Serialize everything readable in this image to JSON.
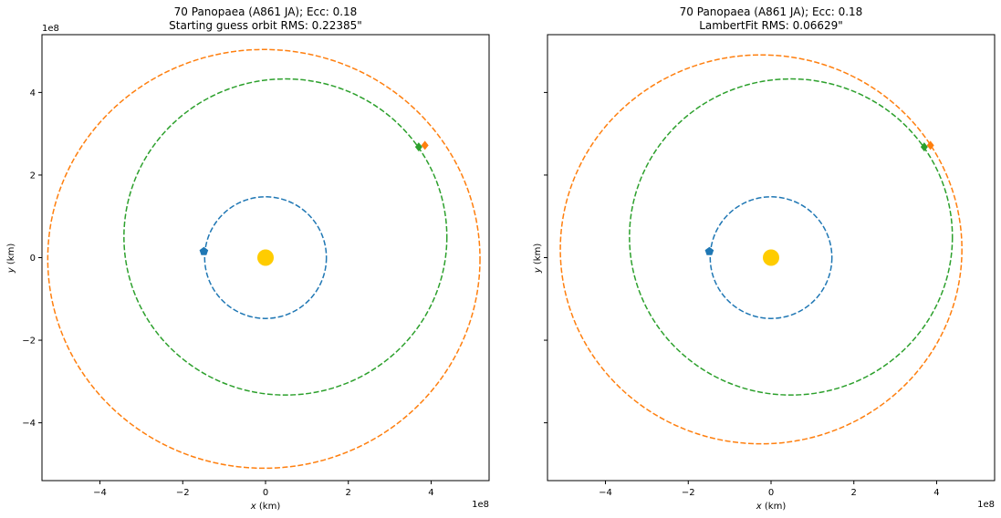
{
  "chart_data": [
    {
      "type": "scatter",
      "title_line1": "70 Panopaea (A861 JA); Ecc: 0.18",
      "title_line2": "Starting guess orbit RMS: 0.22385\"",
      "xlabel_var": "x",
      "xlabel_unit": " (km)",
      "ylabel_var": "y",
      "ylabel_unit": " (km)",
      "x_offset_label": "1e8",
      "y_offset_label": "1e8",
      "xlim": [
        -5.4,
        5.4
      ],
      "ylim": [
        -5.4,
        5.4
      ],
      "xticks": [
        -4,
        -2,
        0,
        2,
        4
      ],
      "yticks": [
        -4,
        -2,
        0,
        2,
        4
      ],
      "xtick_labels": [
        "−4",
        "−2",
        "0",
        "2",
        "4"
      ],
      "ytick_labels": [
        "−4",
        "−2",
        "0",
        "2",
        "4"
      ],
      "show_yticklabels": true,
      "sun": {
        "x": 0,
        "y": 0,
        "color": "#ffcc00"
      },
      "orbits": [
        {
          "color": "#1f77b4",
          "cx": 0.0,
          "cy": 0.0,
          "rx": 1.47,
          "ry": 1.47,
          "marker_x": -1.49,
          "marker_y": 0.15,
          "marker": "pentagon"
        },
        {
          "color": "#2ca02c",
          "cx": 0.48,
          "cy": 0.5,
          "rx": 3.9,
          "ry": 3.82,
          "marker_x": 3.7,
          "marker_y": 2.68,
          "marker": "diamond"
        },
        {
          "color": "#ff7f0e",
          "cx": -0.04,
          "cy": -0.03,
          "rx": 5.22,
          "ry": 5.06,
          "marker_x": 3.85,
          "marker_y": 2.72,
          "marker": "diamond"
        }
      ]
    },
    {
      "type": "scatter",
      "title_line1": "70 Panopaea (A861 JA); Ecc: 0.18",
      "title_line2": "LambertFit RMS: 0.06629\"",
      "xlabel_var": "x",
      "xlabel_unit": " (km)",
      "ylabel_var": "y",
      "ylabel_unit": " (km)",
      "x_offset_label": "1e8",
      "y_offset_label": "",
      "xlim": [
        -5.4,
        5.4
      ],
      "ylim": [
        -5.4,
        5.4
      ],
      "xticks": [
        -4,
        -2,
        0,
        2,
        4
      ],
      "yticks": [
        -4,
        -2,
        0,
        2,
        4
      ],
      "xtick_labels": [
        "−4",
        "−2",
        "0",
        "2",
        "4"
      ],
      "ytick_labels": [
        "",
        "",
        "",
        "",
        ""
      ],
      "show_yticklabels": false,
      "sun": {
        "x": 0,
        "y": 0,
        "color": "#ffcc00"
      },
      "orbits": [
        {
          "color": "#1f77b4",
          "cx": 0.0,
          "cy": 0.0,
          "rx": 1.47,
          "ry": 1.47,
          "marker_x": -1.49,
          "marker_y": 0.15,
          "marker": "pentagon"
        },
        {
          "color": "#2ca02c",
          "cx": 0.48,
          "cy": 0.5,
          "rx": 3.9,
          "ry": 3.82,
          "marker_x": 3.7,
          "marker_y": 2.68,
          "marker": "diamond"
        },
        {
          "color": "#ff7f0e",
          "cx": -0.24,
          "cy": 0.2,
          "rx": 4.85,
          "ry": 4.7,
          "marker_x": 3.85,
          "marker_y": 2.72,
          "marker": "diamond"
        }
      ]
    }
  ]
}
